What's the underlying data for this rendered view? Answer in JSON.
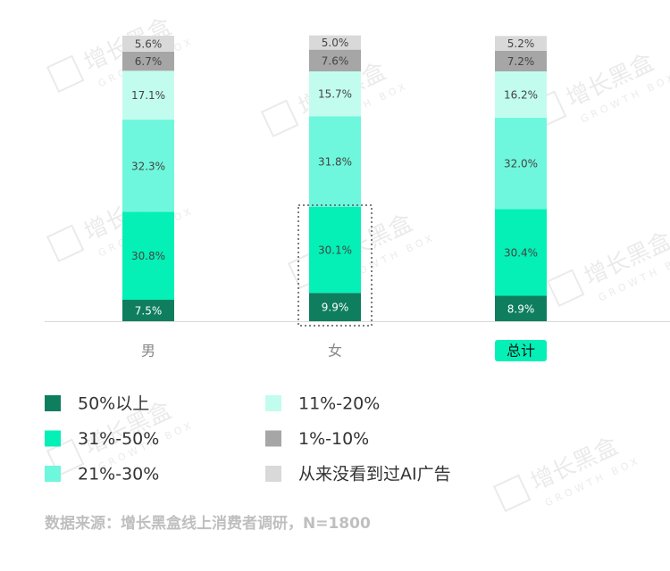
{
  "chart_data": {
    "type": "stacked_bar",
    "categories": [
      "男",
      "女",
      "总计"
    ],
    "ylim": [
      0,
      100
    ],
    "series": [
      {
        "name": "50%以上",
        "color": "#0e7e5e",
        "values": [
          7.5,
          9.9,
          8.9
        ],
        "value_labels": [
          "7.5%",
          "9.9%",
          "8.9%"
        ]
      },
      {
        "name": "31%-50%",
        "color": "#04f0b6",
        "values": [
          30.8,
          30.1,
          30.4
        ],
        "value_labels": [
          "30.8%",
          "30.1%",
          "30.4%"
        ]
      },
      {
        "name": "21%-30%",
        "color": "#6ef7dc",
        "values": [
          32.3,
          31.8,
          32.0
        ],
        "value_labels": [
          "32.3%",
          "31.8%",
          "32.0%"
        ]
      },
      {
        "name": "11%-20%",
        "color": "#c2fcef",
        "values": [
          17.1,
          15.7,
          16.2
        ],
        "value_labels": [
          "17.1%",
          "15.7%",
          "16.2%"
        ]
      },
      {
        "name": "1%-10%",
        "color": "#a6a6a6",
        "values": [
          6.7,
          7.6,
          7.2
        ],
        "value_labels": [
          "6.7%",
          "7.6%",
          "7.2%"
        ]
      },
      {
        "name": "从来没看到过AI广告",
        "color": "#d9d9d9",
        "values": [
          5.6,
          5.0,
          5.2
        ],
        "value_labels": [
          "5.6%",
          "5.0%",
          "5.2%"
        ]
      }
    ],
    "source": "数据来源：增长黑盒线上消费者调研，N=1800",
    "watermark": "增长黑盒",
    "watermark_sub": "GROWTH BOX"
  }
}
